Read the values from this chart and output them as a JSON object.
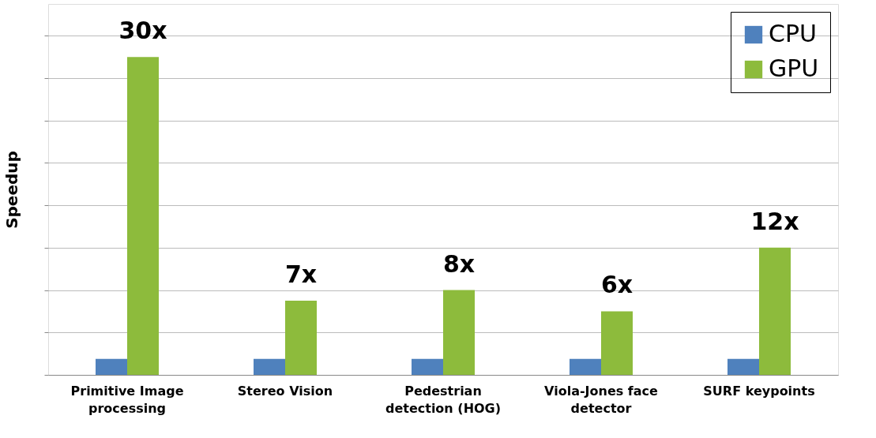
{
  "chart_data": {
    "type": "bar",
    "ylabel": "Speedup",
    "categories": [
      "Primitive Image processing",
      "Stereo Vision",
      "Pedestrian detection (HOG)",
      "Viola-Jones face detector",
      "SURF keypoints"
    ],
    "series": [
      {
        "name": "CPU",
        "color": "#4f81bd",
        "values": [
          1.5,
          1.5,
          1.5,
          1.5,
          1.5
        ]
      },
      {
        "name": "GPU",
        "color": "#8dbb3c",
        "values": [
          30,
          7,
          8,
          6,
          12
        ],
        "value_labels": [
          "30x",
          "7x",
          "8x",
          "6x",
          "12x"
        ]
      }
    ],
    "ylim": [
      0,
      35
    ],
    "grid": true,
    "legend": "top right"
  }
}
